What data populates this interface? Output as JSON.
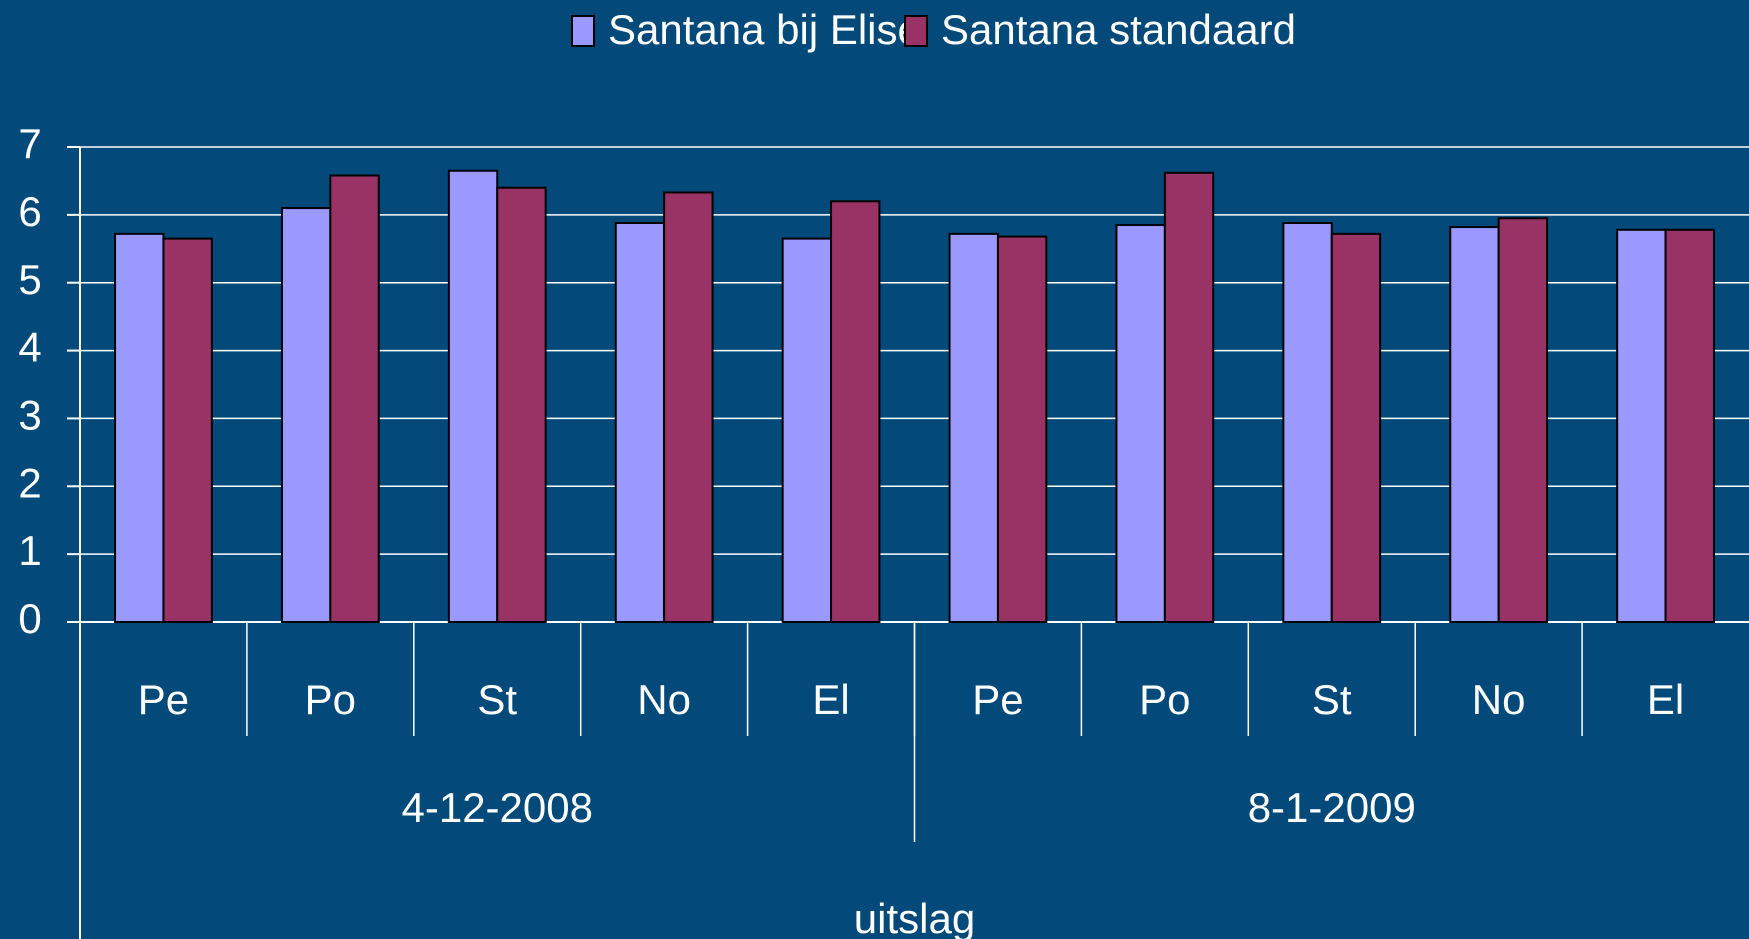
{
  "chart_data": {
    "type": "bar",
    "categories": [
      "Pe",
      "Po",
      "St",
      "No",
      "El",
      "Pe",
      "Po",
      "St",
      "No",
      "El"
    ],
    "groups": [
      "4-12-2008",
      "8-1-2009"
    ],
    "x_label": "uitslag",
    "series": [
      {
        "name": "Santana bij Elise",
        "color": "#9999ff",
        "values": [
          5.72,
          6.1,
          6.65,
          5.88,
          5.65,
          5.72,
          5.85,
          5.88,
          5.82,
          5.78
        ]
      },
      {
        "name": "Santana standaard",
        "color": "#993366",
        "values": [
          5.65,
          6.58,
          6.4,
          6.33,
          6.2,
          5.68,
          6.62,
          5.72,
          5.95,
          5.78
        ]
      }
    ],
    "ylim": [
      0,
      7
    ],
    "yticks": [
      0,
      1,
      2,
      3,
      4,
      5,
      6,
      7
    ],
    "grid": true,
    "legend": "top"
  }
}
